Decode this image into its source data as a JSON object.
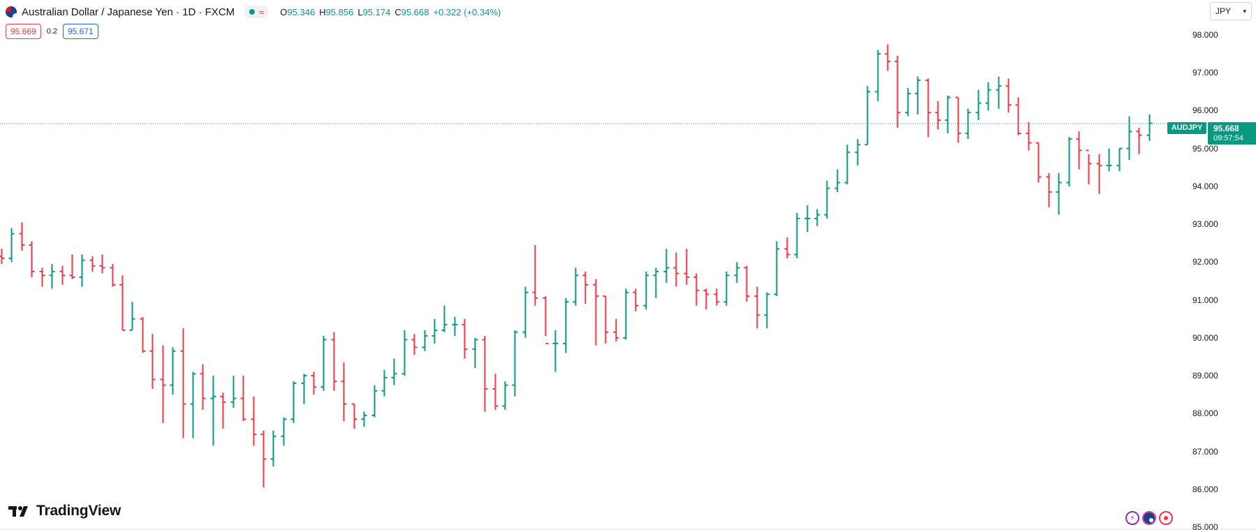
{
  "header": {
    "symbol_title": "Australian Dollar / Japanese Yen · 1D · FXCM",
    "status_icons": [
      "market-open-dot",
      "delayed-data-icon"
    ],
    "ohlc": {
      "o_label": "O",
      "o_value": "95.346",
      "h_label": "H",
      "h_value": "95.856",
      "l_label": "L",
      "l_value": "95.174",
      "c_label": "C",
      "c_value": "95.668",
      "change": "+0.322 (+0.34%)"
    }
  },
  "quote": {
    "sell": "95.669",
    "spread": "0.2",
    "buy": "95.671"
  },
  "currency_selector": {
    "label": "JPY"
  },
  "price_tag": {
    "symbol": "AUDJPY",
    "price": "95.668",
    "countdown": "09:57:54"
  },
  "logo": {
    "text": "TradingView"
  },
  "colors": {
    "up": "#089981",
    "down": "#f23645",
    "last_price_line": "#089981"
  },
  "chart_data": {
    "type": "ohlc",
    "title": "Australian Dollar / Japanese Yen · 1D · FXCM",
    "y_ticks": [
      "98.000",
      "97.000",
      "96.000",
      "95.000",
      "94.000",
      "93.000",
      "92.000",
      "91.000",
      "90.000",
      "89.000",
      "88.000",
      "87.000",
      "86.000",
      "85.000"
    ],
    "ylim": [
      85.0,
      98.5
    ],
    "last_price": 95.668,
    "grid": false,
    "bars": [
      [
        92.15,
        92.35,
        91.95,
        92.1
      ],
      [
        92.1,
        92.9,
        92.0,
        92.75
      ],
      [
        92.75,
        93.05,
        92.3,
        92.45
      ],
      [
        92.45,
        92.55,
        91.6,
        91.75
      ],
      [
        91.75,
        91.85,
        91.35,
        91.65
      ],
      [
        91.65,
        91.95,
        91.3,
        91.75
      ],
      [
        91.75,
        91.9,
        91.4,
        91.65
      ],
      [
        91.65,
        92.2,
        91.55,
        91.6
      ],
      [
        91.6,
        92.2,
        91.35,
        92.05
      ],
      [
        92.05,
        92.15,
        91.75,
        91.9
      ],
      [
        91.9,
        92.2,
        91.7,
        91.85
      ],
      [
        91.85,
        91.95,
        91.35,
        91.4
      ],
      [
        91.4,
        91.65,
        90.2,
        90.2
      ],
      [
        90.2,
        90.95,
        90.2,
        90.5
      ],
      [
        90.5,
        90.55,
        89.6,
        89.65
      ],
      [
        89.65,
        90.1,
        88.65,
        88.9
      ],
      [
        88.9,
        89.8,
        87.75,
        88.75
      ],
      [
        88.75,
        89.75,
        88.5,
        89.65
      ],
      [
        89.65,
        90.25,
        87.35,
        88.25
      ],
      [
        88.25,
        89.1,
        87.35,
        89.05
      ],
      [
        89.05,
        89.3,
        88.1,
        88.4
      ],
      [
        88.4,
        89.0,
        87.15,
        88.45
      ],
      [
        88.45,
        88.55,
        87.6,
        88.3
      ],
      [
        88.3,
        89.0,
        88.15,
        88.4
      ],
      [
        88.4,
        89.0,
        87.8,
        87.85
      ],
      [
        87.85,
        88.45,
        87.15,
        87.45
      ],
      [
        87.45,
        87.55,
        86.05,
        86.8
      ],
      [
        86.8,
        87.55,
        86.6,
        87.4
      ],
      [
        87.4,
        87.9,
        87.15,
        87.85
      ],
      [
        87.85,
        88.85,
        87.75,
        88.8
      ],
      [
        88.8,
        89.05,
        88.25,
        89.0
      ],
      [
        89.0,
        89.1,
        88.5,
        88.7
      ],
      [
        88.7,
        90.05,
        88.6,
        89.95
      ],
      [
        89.95,
        90.15,
        88.6,
        88.85
      ],
      [
        88.85,
        89.35,
        87.8,
        88.25
      ],
      [
        88.25,
        88.25,
        87.6,
        87.85
      ],
      [
        87.85,
        88.05,
        87.65,
        87.95
      ],
      [
        87.95,
        88.75,
        87.9,
        88.6
      ],
      [
        88.6,
        89.15,
        88.45,
        88.95
      ],
      [
        88.95,
        89.45,
        88.75,
        89.05
      ],
      [
        89.05,
        90.2,
        89.0,
        89.95
      ],
      [
        89.95,
        90.1,
        89.55,
        89.75
      ],
      [
        89.75,
        90.2,
        89.65,
        90.05
      ],
      [
        90.05,
        90.5,
        89.85,
        90.2
      ],
      [
        90.2,
        90.85,
        90.15,
        90.35
      ],
      [
        90.35,
        90.55,
        90.05,
        90.35
      ],
      [
        90.35,
        90.5,
        89.45,
        89.7
      ],
      [
        89.7,
        90.0,
        89.2,
        89.95
      ],
      [
        89.95,
        90.05,
        88.05,
        88.65
      ],
      [
        88.65,
        89.05,
        88.1,
        88.2
      ],
      [
        88.2,
        88.85,
        88.1,
        88.75
      ],
      [
        88.75,
        90.2,
        88.45,
        90.15
      ],
      [
        90.15,
        91.35,
        90.0,
        91.2
      ],
      [
        91.2,
        92.45,
        90.85,
        91.05
      ],
      [
        91.05,
        91.1,
        90.05,
        89.85
      ],
      [
        89.85,
        90.2,
        89.1,
        89.85
      ],
      [
        89.85,
        91.05,
        89.6,
        90.95
      ],
      [
        90.95,
        91.85,
        90.85,
        91.65
      ],
      [
        91.65,
        91.75,
        90.9,
        91.4
      ],
      [
        91.4,
        91.55,
        89.8,
        91.1
      ],
      [
        91.1,
        91.1,
        89.85,
        90.15
      ],
      [
        90.15,
        90.5,
        89.9,
        90.0
      ],
      [
        90.0,
        91.3,
        89.95,
        91.2
      ],
      [
        91.2,
        91.3,
        90.7,
        90.85
      ],
      [
        90.85,
        91.75,
        90.75,
        91.65
      ],
      [
        91.65,
        91.85,
        91.05,
        91.75
      ],
      [
        91.75,
        92.35,
        91.45,
        91.85
      ],
      [
        91.85,
        92.25,
        91.35,
        91.7
      ],
      [
        91.7,
        92.35,
        91.4,
        91.6
      ],
      [
        91.6,
        91.7,
        90.85,
        91.25
      ],
      [
        91.25,
        91.3,
        90.75,
        91.15
      ],
      [
        91.15,
        91.3,
        90.85,
        90.95
      ],
      [
        90.95,
        91.75,
        90.85,
        91.65
      ],
      [
        91.65,
        92.0,
        91.45,
        91.85
      ],
      [
        91.85,
        91.9,
        90.95,
        91.1
      ],
      [
        91.1,
        91.35,
        90.25,
        90.6
      ],
      [
        90.6,
        91.2,
        90.25,
        91.15
      ],
      [
        91.15,
        92.55,
        91.1,
        92.35
      ],
      [
        92.35,
        92.65,
        92.1,
        92.2
      ],
      [
        92.2,
        93.3,
        92.1,
        93.15
      ],
      [
        93.15,
        93.5,
        92.8,
        93.15
      ],
      [
        93.15,
        93.4,
        92.95,
        93.25
      ],
      [
        93.25,
        94.15,
        93.15,
        93.95
      ],
      [
        93.95,
        94.45,
        93.85,
        94.1
      ],
      [
        94.1,
        95.1,
        94.05,
        94.9
      ],
      [
        94.9,
        95.25,
        94.55,
        95.1
      ],
      [
        95.1,
        96.65,
        95.1,
        96.5
      ],
      [
        96.5,
        97.6,
        96.25,
        97.5
      ],
      [
        97.5,
        97.75,
        97.05,
        97.3
      ],
      [
        97.3,
        97.45,
        95.55,
        95.95
      ],
      [
        95.95,
        96.6,
        95.85,
        96.45
      ],
      [
        96.45,
        96.9,
        95.9,
        96.8
      ],
      [
        96.8,
        96.85,
        95.3,
        95.95
      ],
      [
        95.95,
        96.25,
        95.5,
        95.75
      ],
      [
        95.75,
        96.4,
        95.4,
        96.35
      ],
      [
        96.35,
        96.35,
        95.15,
        95.4
      ],
      [
        95.4,
        96.05,
        95.25,
        95.95
      ],
      [
        95.95,
        96.55,
        95.75,
        96.2
      ],
      [
        96.2,
        96.75,
        96.0,
        96.55
      ],
      [
        96.55,
        96.9,
        96.05,
        96.65
      ],
      [
        96.65,
        96.85,
        95.95,
        96.15
      ],
      [
        96.15,
        96.35,
        95.35,
        95.4
      ],
      [
        95.4,
        95.7,
        94.95,
        95.15
      ],
      [
        95.15,
        95.15,
        94.1,
        94.25
      ],
      [
        94.25,
        94.35,
        93.45,
        93.85
      ],
      [
        93.85,
        94.35,
        93.25,
        94.1
      ],
      [
        94.1,
        95.3,
        94.0,
        95.25
      ],
      [
        95.25,
        95.45,
        94.45,
        94.95
      ],
      [
        94.95,
        94.85,
        94.05,
        94.6
      ],
      [
        94.6,
        94.85,
        93.8,
        94.55
      ],
      [
        94.55,
        95.0,
        94.4,
        94.55
      ],
      [
        94.55,
        95.0,
        94.4,
        95.0
      ],
      [
        95.0,
        95.85,
        94.7,
        95.45
      ],
      [
        95.45,
        95.55,
        94.85,
        95.35
      ],
      [
        95.35,
        95.9,
        95.2,
        95.668
      ]
    ]
  }
}
